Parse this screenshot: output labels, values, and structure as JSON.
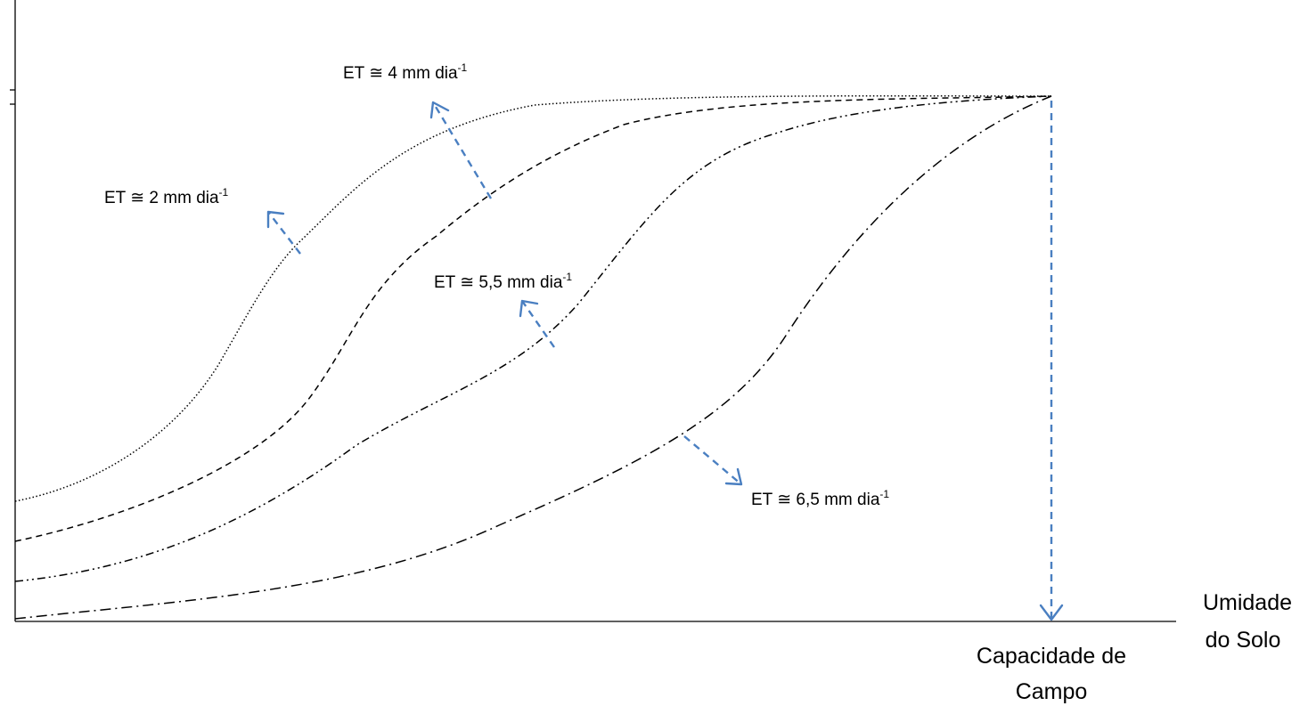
{
  "diagram": {
    "axis_label_x": [
      "Umidade",
      "do Solo"
    ],
    "field_capacity_label": [
      "Capacidade de",
      "Campo"
    ],
    "curves": [
      {
        "et_label": "ET ≅ 2 mm dia",
        "superscript": "-1",
        "line_style": "dotted"
      },
      {
        "et_label": "ET ≅ 4 mm dia",
        "superscript": "-1",
        "line_style": "dashed"
      },
      {
        "et_label": "ET ≅ 5,5 mm dia",
        "superscript": "-1",
        "line_style": "dash-dot-dot"
      },
      {
        "et_label": "ET ≅ 6,5 mm dia",
        "superscript": "-1",
        "line_style": "dash-dot"
      }
    ],
    "colors": {
      "curve": "#000000",
      "arrow": "#4a7fc1"
    }
  }
}
